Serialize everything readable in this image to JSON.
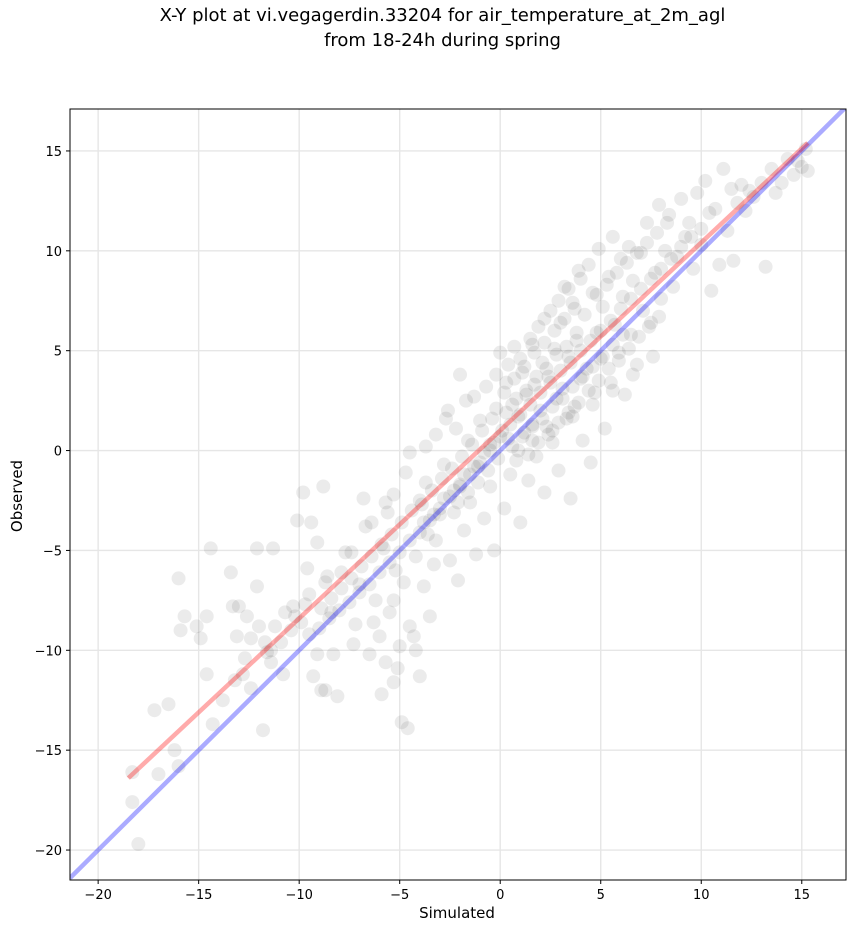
{
  "chart_data": {
    "type": "scatter",
    "title_line1": "X-Y plot at vi.vegagerdin.33204 for air_temperature_at_2m_agl",
    "title_line2": "from 18-24h during spring",
    "xlabel": "Simulated",
    "ylabel": "Observed",
    "xlim": [
      -21.4,
      17.2
    ],
    "ylim": [
      -21.5,
      17.1
    ],
    "xticks": [
      -20,
      -15,
      -10,
      -5,
      0,
      5,
      10,
      15
    ],
    "yticks": [
      -20,
      -15,
      -10,
      -5,
      0,
      5,
      10,
      15
    ],
    "xtick_labels": [
      "−20",
      "−15",
      "−10",
      "−5",
      "0",
      "5",
      "10",
      "15"
    ],
    "ytick_labels": [
      "−20",
      "−15",
      "−10",
      "−5",
      "0",
      "5",
      "10",
      "15"
    ],
    "grid": true,
    "point_color": "#000000",
    "lines": [
      {
        "role": "one-to-one",
        "color": "#0000ff",
        "x": [
          -21.4,
          17.2
        ],
        "y": [
          -21.4,
          17.2
        ]
      },
      {
        "role": "regression-fit",
        "color": "#ff0000",
        "x": [
          -18.5,
          15.3
        ],
        "y": [
          -16.4,
          15.4
        ]
      }
    ],
    "points": [
      [
        -18.3,
        -16.1
      ],
      [
        -18.3,
        -17.6
      ],
      [
        -18.0,
        -19.7
      ],
      [
        -17.2,
        -13.0
      ],
      [
        -17.0,
        -16.2
      ],
      [
        -16.5,
        -12.7
      ],
      [
        -16.2,
        -15.0
      ],
      [
        -16.0,
        -15.8
      ],
      [
        -16.0,
        -6.4
      ],
      [
        -15.9,
        -9.0
      ],
      [
        -15.7,
        -8.3
      ],
      [
        -15.1,
        -8.8
      ],
      [
        -14.9,
        -9.4
      ],
      [
        -14.6,
        -11.2
      ],
      [
        -14.6,
        -8.3
      ],
      [
        -14.4,
        -4.9
      ],
      [
        -14.3,
        -13.7
      ],
      [
        -13.8,
        -12.5
      ],
      [
        -13.4,
        -6.1
      ],
      [
        -13.3,
        -7.8
      ],
      [
        -13.1,
        -9.3
      ],
      [
        -13.0,
        -7.8
      ],
      [
        -12.8,
        -11.2
      ],
      [
        -12.6,
        -8.3
      ],
      [
        -12.4,
        -9.4
      ],
      [
        -12.4,
        -11.9
      ],
      [
        -12.1,
        -4.9
      ],
      [
        -12.1,
        -6.8
      ],
      [
        -12.0,
        -8.8
      ],
      [
        -11.8,
        -14.0
      ],
      [
        -11.6,
        -10.1
      ],
      [
        -11.4,
        -10.6
      ],
      [
        -11.3,
        -4.9
      ],
      [
        -11.2,
        -8.8
      ],
      [
        -10.8,
        -11.2
      ],
      [
        -10.3,
        -7.8
      ],
      [
        -10.2,
        -8.3
      ],
      [
        -10.1,
        -3.5
      ],
      [
        -9.8,
        -2.1
      ],
      [
        -9.6,
        -5.9
      ],
      [
        -9.5,
        -7.2
      ],
      [
        -9.4,
        -3.6
      ],
      [
        -9.3,
        -11.3
      ],
      [
        -9.1,
        -4.6
      ],
      [
        -9.1,
        -10.2
      ],
      [
        -8.9,
        -12.0
      ],
      [
        -8.8,
        -1.8
      ],
      [
        -8.7,
        -12.0
      ],
      [
        -8.6,
        -6.3
      ],
      [
        -8.4,
        -8.1
      ],
      [
        -8.3,
        -10.2
      ],
      [
        -8.1,
        -12.3
      ],
      [
        -7.9,
        -6.1
      ],
      [
        -7.4,
        -5.1
      ],
      [
        -7.2,
        -8.7
      ],
      [
        -7.0,
        -6.7
      ],
      [
        -6.8,
        -2.4
      ],
      [
        -6.5,
        -10.2
      ],
      [
        -6.4,
        -3.6
      ],
      [
        -6.0,
        -9.3
      ],
      [
        -5.9,
        -12.2
      ],
      [
        -5.8,
        -4.9
      ],
      [
        -5.7,
        -10.6
      ],
      [
        -5.6,
        -3.1
      ],
      [
        -5.5,
        -8.1
      ],
      [
        -5.3,
        -11.6
      ],
      [
        -5.3,
        -2.2
      ],
      [
        -5.1,
        -10.9
      ],
      [
        -5.0,
        -9.8
      ],
      [
        -4.9,
        -13.6
      ],
      [
        -4.8,
        -6.6
      ],
      [
        -4.6,
        -13.9
      ],
      [
        -4.5,
        -8.8
      ],
      [
        -4.5,
        -0.1
      ],
      [
        -4.3,
        -9.3
      ],
      [
        -4.2,
        -10.0
      ],
      [
        -4.0,
        -11.3
      ],
      [
        -4.0,
        -2.5
      ],
      [
        -3.8,
        -6.8
      ],
      [
        -3.7,
        -1.6
      ],
      [
        -3.6,
        -4.2
      ],
      [
        -3.5,
        -8.3
      ],
      [
        -3.3,
        -5.7
      ],
      [
        -3.2,
        0.8
      ],
      [
        -3.0,
        -3.2
      ],
      [
        -2.8,
        -0.7
      ],
      [
        -2.6,
        2.0
      ],
      [
        -2.5,
        -5.5
      ],
      [
        -2.3,
        -3.1
      ],
      [
        -2.2,
        1.1
      ],
      [
        -2.1,
        -6.5
      ],
      [
        -2.0,
        -1.7
      ],
      [
        -2.0,
        3.8
      ],
      [
        -1.8,
        -4.0
      ],
      [
        -1.6,
        0.5
      ],
      [
        -1.5,
        -2.6
      ],
      [
        -1.3,
        2.7
      ],
      [
        -1.2,
        -5.2
      ],
      [
        -1.1,
        -0.8
      ],
      [
        -1.0,
        1.5
      ],
      [
        -0.8,
        -3.4
      ],
      [
        -0.7,
        3.2
      ],
      [
        -0.5,
        0.3
      ],
      [
        -0.5,
        -1.8
      ],
      [
        -0.3,
        -5.0
      ],
      [
        -0.2,
        2.1
      ],
      [
        -0.1,
        -0.4
      ],
      [
        0.0,
        4.9
      ],
      [
        0.1,
        1.0
      ],
      [
        0.2,
        -2.9
      ],
      [
        0.3,
        3.4
      ],
      [
        0.4,
        0.6
      ],
      [
        0.5,
        -1.2
      ],
      [
        0.6,
        2.3
      ],
      [
        0.7,
        5.2
      ],
      [
        0.8,
        -0.5
      ],
      [
        0.9,
        1.7
      ],
      [
        1.0,
        -3.6
      ],
      [
        1.1,
        3.9
      ],
      [
        1.2,
        0.9
      ],
      [
        1.3,
        2.8
      ],
      [
        1.4,
        -1.5
      ],
      [
        1.5,
        5.6
      ],
      [
        1.6,
        1.3
      ],
      [
        1.7,
        3.3
      ],
      [
        1.8,
        -0.3
      ],
      [
        1.9,
        6.2
      ],
      [
        2.0,
        2.0
      ],
      [
        2.1,
        4.4
      ],
      [
        2.2,
        -2.1
      ],
      [
        2.3,
        1.2
      ],
      [
        2.4,
        3.7
      ],
      [
        2.5,
        7.0
      ],
      [
        2.6,
        0.4
      ],
      [
        2.7,
        5.1
      ],
      [
        2.8,
        2.6
      ],
      [
        2.9,
        -1.0
      ],
      [
        3.0,
        6.4
      ],
      [
        3.1,
        3.1
      ],
      [
        3.2,
        8.2
      ],
      [
        3.3,
        1.6
      ],
      [
        3.4,
        4.7
      ],
      [
        3.5,
        -2.4
      ],
      [
        3.6,
        7.4
      ],
      [
        3.7,
        2.2
      ],
      [
        3.8,
        5.5
      ],
      [
        3.9,
        9.0
      ],
      [
        4.0,
        3.6
      ],
      [
        4.1,
        0.5
      ],
      [
        4.2,
        6.8
      ],
      [
        4.3,
        4.1
      ],
      [
        4.4,
        9.3
      ],
      [
        4.5,
        -0.6
      ],
      [
        4.6,
        7.9
      ],
      [
        4.7,
        2.9
      ],
      [
        4.8,
        5.9
      ],
      [
        4.9,
        10.1
      ],
      [
        5.0,
        4.6
      ],
      [
        5.1,
        7.2
      ],
      [
        5.2,
        1.1
      ],
      [
        5.4,
        8.7
      ],
      [
        5.5,
        3.4
      ],
      [
        5.6,
        10.7
      ],
      [
        5.7,
        6.3
      ],
      [
        5.9,
        4.9
      ],
      [
        6.0,
        9.6
      ],
      [
        6.1,
        7.7
      ],
      [
        6.2,
        2.8
      ],
      [
        6.4,
        10.2
      ],
      [
        6.5,
        5.8
      ],
      [
        6.6,
        8.5
      ],
      [
        6.8,
        4.3
      ],
      [
        7.0,
        9.9
      ],
      [
        7.1,
        7.0
      ],
      [
        7.3,
        11.4
      ],
      [
        7.5,
        6.4
      ],
      [
        7.7,
        8.9
      ],
      [
        7.9,
        12.3
      ],
      [
        8.0,
        7.6
      ],
      [
        8.2,
        10.0
      ],
      [
        8.4,
        11.8
      ],
      [
        8.6,
        8.2
      ],
      [
        8.8,
        9.7
      ],
      [
        9.0,
        12.6
      ],
      [
        9.2,
        10.7
      ],
      [
        9.4,
        11.4
      ],
      [
        9.6,
        9.1
      ],
      [
        9.8,
        12.9
      ],
      [
        10.0,
        10.3
      ],
      [
        10.2,
        13.5
      ],
      [
        10.4,
        11.9
      ],
      [
        10.5,
        8.0
      ],
      [
        10.7,
        12.1
      ],
      [
        10.9,
        9.3
      ],
      [
        11.1,
        14.1
      ],
      [
        11.3,
        11.0
      ],
      [
        11.5,
        13.1
      ],
      [
        11.6,
        9.5
      ],
      [
        11.8,
        12.4
      ],
      [
        12.0,
        13.3
      ],
      [
        12.2,
        12.0
      ],
      [
        12.4,
        13.0
      ],
      [
        12.6,
        12.7
      ],
      [
        13.0,
        13.4
      ],
      [
        13.2,
        9.2
      ],
      [
        13.5,
        14.1
      ],
      [
        13.7,
        12.9
      ],
      [
        14.0,
        13.4
      ],
      [
        14.3,
        14.6
      ],
      [
        14.8,
        14.5
      ],
      [
        15.0,
        14.2
      ],
      [
        15.3,
        14.0
      ],
      [
        15.2,
        15.1
      ],
      [
        14.6,
        13.8
      ],
      [
        -1.5,
        -1.2
      ],
      [
        -1.0,
        -0.6
      ],
      [
        -0.5,
        0.0
      ],
      [
        0.0,
        0.7
      ],
      [
        0.5,
        1.3
      ],
      [
        1.0,
        1.8
      ],
      [
        1.5,
        2.3
      ],
      [
        2.0,
        2.9
      ],
      [
        -2.0,
        -1.8
      ],
      [
        -2.5,
        -2.3
      ],
      [
        -3.0,
        -2.9
      ],
      [
        -3.5,
        -3.5
      ],
      [
        -4.0,
        -4.1
      ],
      [
        -4.5,
        -4.5
      ],
      [
        -5.0,
        -5.1
      ],
      [
        -5.5,
        -5.6
      ],
      [
        -6.0,
        -6.1
      ],
      [
        -6.5,
        -6.7
      ],
      [
        -7.0,
        -7.1
      ],
      [
        -7.5,
        -7.6
      ],
      [
        -8.0,
        -8.0
      ],
      [
        -8.5,
        -8.4
      ],
      [
        -9.0,
        -8.9
      ],
      [
        -9.5,
        -9.2
      ],
      [
        2.5,
        3.4
      ],
      [
        3.0,
        4.0
      ],
      [
        3.5,
        4.4
      ],
      [
        4.0,
        5.0
      ],
      [
        4.5,
        5.5
      ],
      [
        5.0,
        6.0
      ],
      [
        5.5,
        6.5
      ],
      [
        6.0,
        7.1
      ],
      [
        6.5,
        7.6
      ],
      [
        7.0,
        8.1
      ],
      [
        7.5,
        8.6
      ],
      [
        8.0,
        9.1
      ],
      [
        8.5,
        9.6
      ],
      [
        9.0,
        10.2
      ],
      [
        9.5,
        10.7
      ],
      [
        10.0,
        11.1
      ],
      [
        0.3,
        1.9
      ],
      [
        0.8,
        2.6
      ],
      [
        1.3,
        3.0
      ],
      [
        1.8,
        3.7
      ],
      [
        2.3,
        4.1
      ],
      [
        2.8,
        4.8
      ],
      [
        3.3,
        5.2
      ],
      [
        3.8,
        5.9
      ],
      [
        -0.3,
        0.4
      ],
      [
        -0.8,
        -0.1
      ],
      [
        -1.3,
        -0.8
      ],
      [
        -1.8,
        -1.2
      ],
      [
        -2.3,
        -2.0
      ],
      [
        -2.8,
        -2.4
      ],
      [
        -3.3,
        -3.2
      ],
      [
        -3.8,
        -3.6
      ],
      [
        0.6,
        0.2
      ],
      [
        1.1,
        0.7
      ],
      [
        1.6,
        1.2
      ],
      [
        2.1,
        1.6
      ],
      [
        2.6,
        2.2
      ],
      [
        3.1,
        2.6
      ],
      [
        3.6,
        3.2
      ],
      [
        4.1,
        3.7
      ],
      [
        4.6,
        4.2
      ],
      [
        5.1,
        4.7
      ],
      [
        5.6,
        5.3
      ],
      [
        6.1,
        5.8
      ],
      [
        -0.6,
        -1.0
      ],
      [
        -1.1,
        -1.6
      ],
      [
        -1.6,
        -2.1
      ],
      [
        -2.1,
        -2.6
      ],
      [
        0.2,
        2.9
      ],
      [
        0.7,
        3.6
      ],
      [
        1.2,
        4.2
      ],
      [
        1.7,
        4.9
      ],
      [
        2.2,
        5.4
      ],
      [
        2.7,
        6.0
      ],
      [
        3.2,
        6.6
      ],
      [
        3.7,
        7.1
      ],
      [
        -0.4,
        1.6
      ],
      [
        -0.9,
        1.0
      ],
      [
        -1.4,
        0.3
      ],
      [
        -1.9,
        -0.3
      ],
      [
        -2.4,
        -0.9
      ],
      [
        -2.9,
        -1.4
      ],
      [
        -3.4,
        -2.0
      ],
      [
        -3.9,
        -2.7
      ],
      [
        1.4,
        -0.2
      ],
      [
        1.9,
        0.4
      ],
      [
        2.4,
        0.8
      ],
      [
        2.9,
        1.4
      ],
      [
        3.4,
        1.9
      ],
      [
        3.9,
        2.4
      ],
      [
        4.4,
        3.0
      ],
      [
        4.9,
        3.5
      ],
      [
        5.4,
        4.1
      ],
      [
        5.9,
        4.5
      ],
      [
        6.4,
        5.1
      ],
      [
        6.9,
        5.7
      ],
      [
        7.4,
        6.2
      ],
      [
        7.9,
        6.7
      ],
      [
        -4.4,
        -3.0
      ],
      [
        -4.9,
        -3.6
      ],
      [
        -5.4,
        -4.2
      ],
      [
        -5.9,
        -4.7
      ],
      [
        -6.4,
        -5.3
      ],
      [
        -6.9,
        -5.8
      ],
      [
        -7.4,
        -6.4
      ],
      [
        -7.9,
        -6.9
      ],
      [
        -8.4,
        -7.4
      ],
      [
        -8.9,
        -7.9
      ],
      [
        -10.4,
        -9.0
      ],
      [
        -10.9,
        -9.6
      ],
      [
        -11.4,
        -10.0
      ],
      [
        -9.9,
        -8.6
      ],
      [
        -6.2,
        -7.5
      ],
      [
        -5.2,
        -6.0
      ],
      [
        -4.2,
        -5.3
      ],
      [
        -3.2,
        -4.5
      ],
      [
        4.8,
        7.8
      ],
      [
        5.3,
        8.3
      ],
      [
        5.8,
        8.9
      ],
      [
        6.3,
        9.4
      ],
      [
        6.8,
        9.9
      ],
      [
        7.3,
        10.4
      ],
      [
        7.8,
        10.9
      ],
      [
        8.3,
        11.4
      ],
      [
        0.9,
        0.0
      ],
      [
        1.6,
        0.5
      ],
      [
        2.6,
        1.0
      ],
      [
        3.6,
        1.7
      ],
      [
        4.6,
        2.3
      ],
      [
        5.6,
        3.0
      ],
      [
        6.6,
        3.8
      ],
      [
        7.6,
        4.7
      ],
      [
        -0.2,
        3.8
      ],
      [
        0.4,
        4.3
      ],
      [
        1.0,
        4.6
      ],
      [
        1.6,
        5.3
      ],
      [
        2.2,
        6.6
      ],
      [
        2.9,
        7.5
      ],
      [
        3.4,
        8.1
      ],
      [
        4.0,
        8.6
      ],
      [
        -1.7,
        2.5
      ],
      [
        -2.7,
        1.6
      ],
      [
        -3.7,
        0.2
      ],
      [
        -4.7,
        -1.1
      ],
      [
        -5.7,
        -2.6
      ],
      [
        -6.7,
        -3.8
      ],
      [
        -7.7,
        -5.1
      ],
      [
        -8.7,
        -6.6
      ],
      [
        -9.7,
        -7.7
      ],
      [
        -10.7,
        -8.1
      ],
      [
        -11.7,
        -9.6
      ],
      [
        -12.7,
        -10.4
      ],
      [
        -13.2,
        -11.5
      ],
      [
        -7.3,
        -9.7
      ],
      [
        -6.3,
        -8.6
      ],
      [
        -5.3,
        -7.5
      ]
    ]
  }
}
